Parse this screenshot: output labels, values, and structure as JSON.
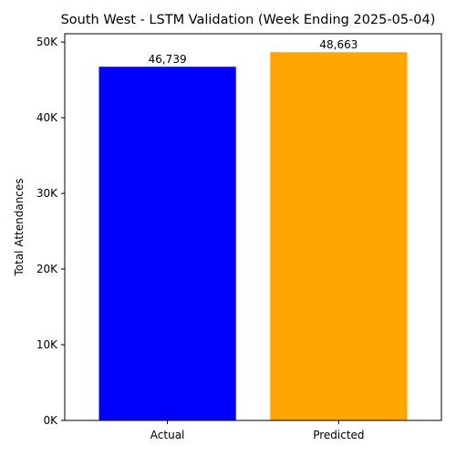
{
  "chart_data": {
    "type": "bar",
    "title": "South West - LSTM Validation (Week Ending 2025-05-04)",
    "xlabel": "",
    "ylabel": "Total Attendances",
    "categories": [
      "Actual",
      "Predicted"
    ],
    "values": [
      46739,
      48663
    ],
    "data_labels": [
      "46,739",
      "48,663"
    ],
    "colors": [
      "#0000ff",
      "#ffa500"
    ],
    "ylim": [
      0,
      51096
    ],
    "yticks": [
      0,
      10000,
      20000,
      30000,
      40000,
      50000
    ],
    "ytick_labels": [
      "0K",
      "10K",
      "20K",
      "30K",
      "40K",
      "50K"
    ],
    "grid": false,
    "legend": "none"
  }
}
